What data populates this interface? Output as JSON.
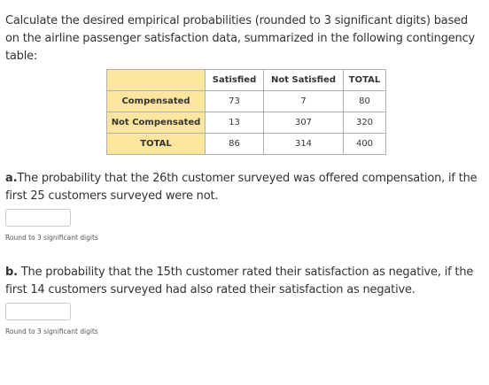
{
  "intro": "Calculate the desired empirical probabilities (rounded to 3 significant digits) based on the airline passenger satisfaction data, summarized in the following contingency table:",
  "table": {
    "headers": [
      "",
      "Satisfied",
      "Not Satisfied",
      "TOTAL"
    ],
    "rows": [
      {
        "label": "Compensated",
        "values": [
          "73",
          "7",
          "80"
        ]
      },
      {
        "label": "Not Compensated",
        "values": [
          "13",
          "307",
          "320"
        ]
      },
      {
        "label": "TOTAL",
        "values": [
          "86",
          "314",
          "400"
        ]
      }
    ]
  },
  "question_a": {
    "prefix": "a.",
    "text": "The probability that the 26th customer surveyed was offered compensation, if the first 25 customers surveyed were not.",
    "answer_value": "",
    "hint": "Round to 3 significant digits"
  },
  "question_b": {
    "prefix": "b.",
    "text": " The probability that the 15th customer rated their satisfaction as negative, if the first 14 customers surveyed had also rated their satisfaction as negative.",
    "answer_value": "",
    "hint": "Round to 3 significant digits"
  },
  "colors": {
    "row_header_bg": "#fce59c",
    "border": "#b0b0b0"
  }
}
